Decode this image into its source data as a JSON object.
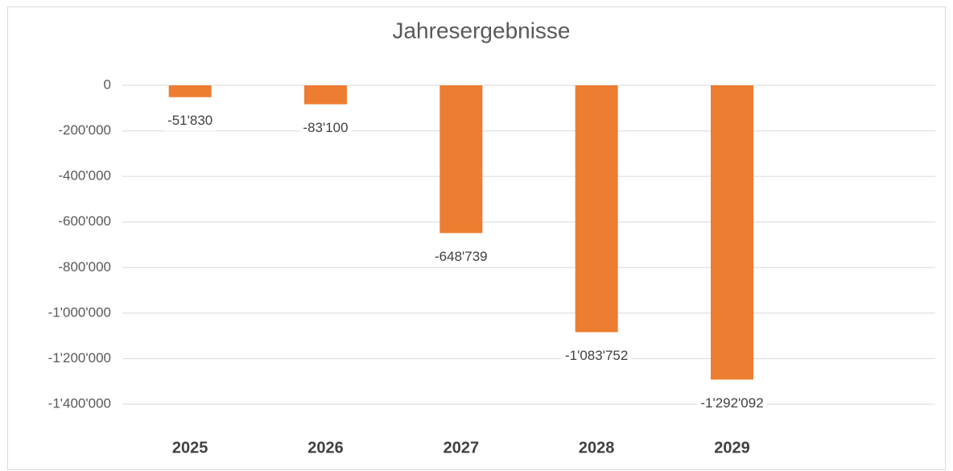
{
  "chart_data": {
    "type": "bar",
    "title": "Jahresergebnisse",
    "categories": [
      "2025",
      "2026",
      "2027",
      "2028",
      "2029",
      null
    ],
    "values": [
      -51830,
      -83100,
      -648739,
      -1083752,
      -1292092,
      null
    ],
    "value_labels": [
      "-51'830",
      "-83'100",
      "-648'739",
      "-1'083'752",
      "-1'292'092",
      null
    ],
    "color": "#ed7d31",
    "ylim": [
      -1400000,
      0
    ],
    "yticks": [
      0,
      {
        "value": -200000,
        "label": "-200'000"
      },
      {
        "value": -400000,
        "label": "-400'000"
      },
      {
        "value": -600000,
        "label": "-600'000"
      },
      {
        "value": -800000,
        "label": "-800'000"
      },
      {
        "value": -1000000,
        "label": "-1'000'000"
      },
      {
        "value": -1200000,
        "label": "-1'200'000"
      },
      {
        "value": -1400000,
        "label": "-1'400'000"
      }
    ],
    "grid": true
  }
}
